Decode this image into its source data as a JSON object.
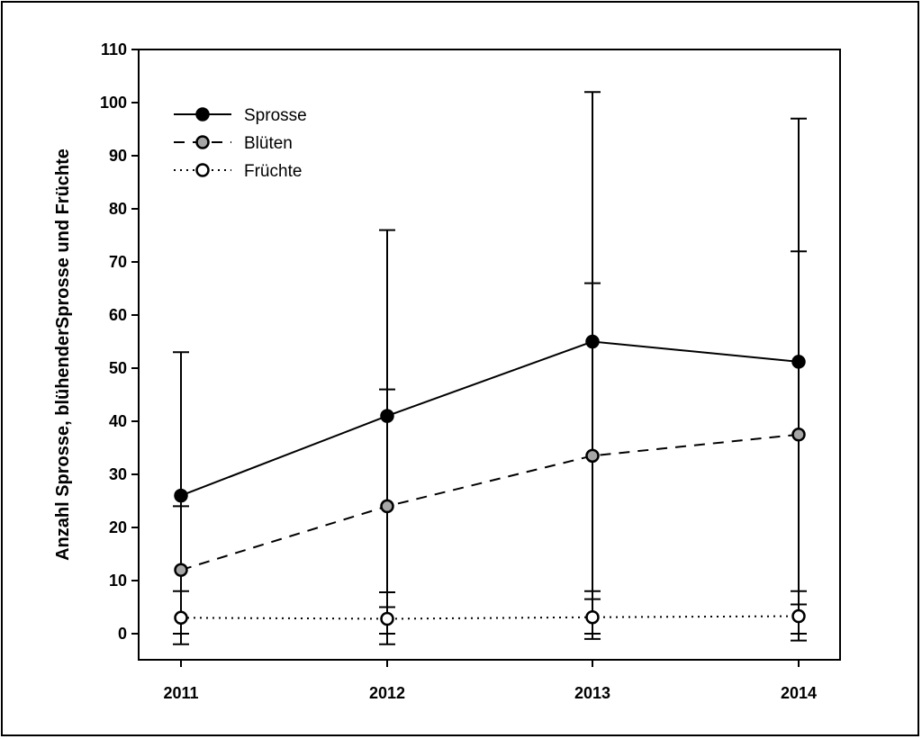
{
  "chart_data": {
    "type": "line",
    "title": "",
    "xlabel": "",
    "ylabel": "Anzahl Sprosse, blühenderSprosse und Früchte",
    "categories": [
      "2011",
      "2012",
      "2013",
      "2014"
    ],
    "ylim": [
      -5,
      110
    ],
    "yticks": [
      0,
      10,
      20,
      30,
      40,
      50,
      60,
      70,
      80,
      90,
      100,
      110
    ],
    "grid": false,
    "legend_position": "top-left",
    "series": [
      {
        "name": "Sprosse",
        "style": "solid",
        "marker_fill": "#000000",
        "values": [
          26,
          41,
          55,
          51.2
        ],
        "error_low": [
          0,
          5,
          8,
          5.5
        ],
        "error_high": [
          53,
          76,
          102,
          97
        ]
      },
      {
        "name": "Blüten",
        "style": "dashed",
        "marker_fill": "#a6a6a6",
        "values": [
          12,
          24,
          33.5,
          37.5
        ],
        "error_low": [
          0,
          0,
          0,
          0
        ],
        "error_high": [
          24,
          46,
          66,
          72
        ]
      },
      {
        "name": "Früchte",
        "style": "dotted",
        "marker_fill": "#ffffff",
        "values": [
          3,
          2.8,
          3.1,
          3.3
        ],
        "error_low": [
          -2,
          -2,
          -1,
          -1.3
        ],
        "error_high": [
          8,
          7.8,
          6.5,
          8
        ]
      }
    ]
  }
}
